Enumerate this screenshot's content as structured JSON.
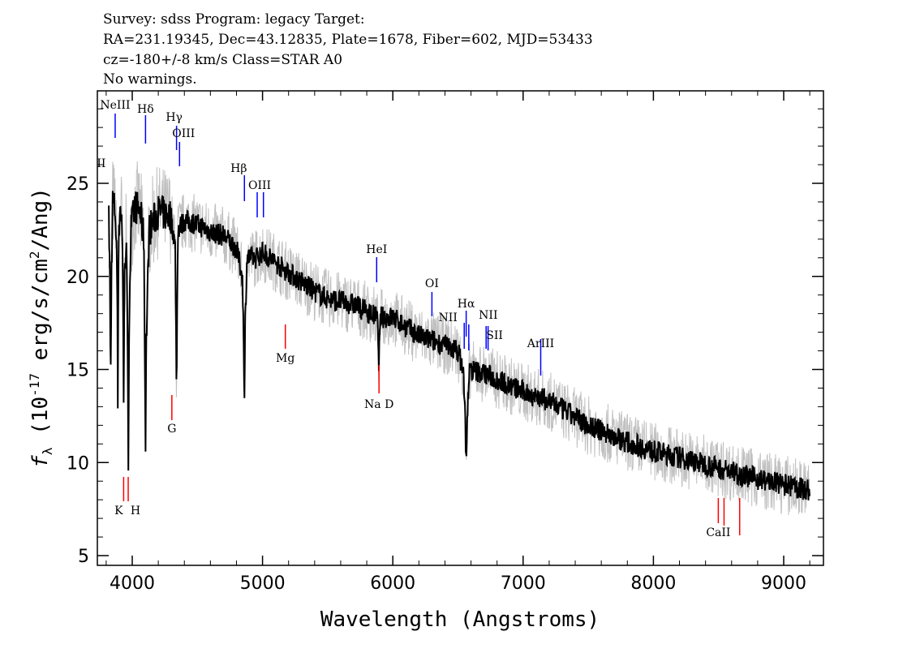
{
  "header": {
    "line1": "Survey: sdss Program: legacy Target:",
    "line2": "RA=231.19345, Dec=43.12835, Plate=1678, Fiber=602, MJD=53433",
    "line3": "cz=-180+/-8 km/s Class=STAR A0",
    "line4": "No warnings."
  },
  "chart_data": {
    "type": "line",
    "title": "",
    "xlabel": "Wavelength (Angstroms)",
    "ylabel": "f_λ (10^-17 erg/s/cm^2/Ang)",
    "xlim": [
      3732,
      9305
    ],
    "ylim": [
      4.5,
      30
    ],
    "x_ticks": [
      4000,
      5000,
      6000,
      7000,
      8000,
      9000
    ],
    "y_ticks": [
      5,
      10,
      15,
      20,
      25
    ],
    "grid": false,
    "colors": {
      "spectrum": "#000000",
      "error": "#c0c0c0",
      "emission": "#0000ff",
      "absorption": "#ff0000"
    },
    "series": [
      {
        "x": [
          3820,
          3828,
          3834,
          3840,
          3850,
          3870,
          3885,
          3889,
          3893,
          3905,
          3920,
          3930,
          3934,
          3940,
          3955,
          3964,
          3970,
          3976,
          3990,
          4020,
          4060,
          4090,
          4096,
          4102,
          4108,
          4130,
          4200,
          4300,
          4330,
          4336,
          4340,
          4344,
          4350,
          4400,
          4500,
          4600,
          4700,
          4800,
          4845,
          4855,
          4861,
          4867,
          4880,
          4950,
          5000,
          5200,
          5400,
          5500,
          5700,
          5880,
          5893,
          5906,
          6000,
          6200,
          6400,
          6500,
          6540,
          6555,
          6563,
          6571,
          6590,
          6700,
          7000,
          7200,
          7500,
          7800,
          8000,
          8300,
          8500,
          8700,
          9000,
          9200
        ],
        "y": [
          23.0,
          20.5,
          14.0,
          20.0,
          24.0,
          23.5,
          20.0,
          13.5,
          20.5,
          24.0,
          23.0,
          19.0,
          13.5,
          19.5,
          22.5,
          16.0,
          10.0,
          17.5,
          22.5,
          23.8,
          23.5,
          22.0,
          16.0,
          11.5,
          16.5,
          22.5,
          23.5,
          23.2,
          21.5,
          17.0,
          13.5,
          17.5,
          22.5,
          23.0,
          22.8,
          22.4,
          22.2,
          21.5,
          20.0,
          17.0,
          13.2,
          17.5,
          21.0,
          21.0,
          21.3,
          20.2,
          19.2,
          18.8,
          18.5,
          17.8,
          15.5,
          17.8,
          17.8,
          16.8,
          16.3,
          16.0,
          15.0,
          12.5,
          9.8,
          12.5,
          15.0,
          14.8,
          13.8,
          13.3,
          12.0,
          11.1,
          10.6,
          10.1,
          9.7,
          9.3,
          8.8,
          8.5
        ]
      }
    ],
    "lines": [
      {
        "name": "OII",
        "wavelength": 3727,
        "kind": "emission"
      },
      {
        "name": "NeIII",
        "wavelength": 3869,
        "kind": "emission"
      },
      {
        "name": "Hδ",
        "wavelength": 4102,
        "kind": "emission"
      },
      {
        "name": "Hγ",
        "wavelength": 4340,
        "kind": "emission"
      },
      {
        "name": "OIII",
        "wavelength": 4363,
        "kind": "emission"
      },
      {
        "name": "Hβ",
        "wavelength": 4861,
        "kind": "emission"
      },
      {
        "name": "OIII",
        "wavelength": 4959,
        "kind": "emission"
      },
      {
        "name": "",
        "wavelength": 5007,
        "kind": "emission"
      },
      {
        "name": "HeI",
        "wavelength": 5876,
        "kind": "emission"
      },
      {
        "name": "OI",
        "wavelength": 6300,
        "kind": "emission"
      },
      {
        "name": "NII",
        "wavelength": 6548,
        "kind": "emission"
      },
      {
        "name": "Hα",
        "wavelength": 6563,
        "kind": "emission"
      },
      {
        "name": "NII",
        "wavelength": 6583,
        "kind": "emission"
      },
      {
        "name": "",
        "wavelength": 6716,
        "kind": "emission"
      },
      {
        "name": "SII",
        "wavelength": 6731,
        "kind": "emission"
      },
      {
        "name": "ArIII",
        "wavelength": 7135,
        "kind": "emission"
      },
      {
        "name": "K",
        "wavelength": 3934,
        "kind": "absorption"
      },
      {
        "name": "H",
        "wavelength": 3969,
        "kind": "absorption"
      },
      {
        "name": "G",
        "wavelength": 4304,
        "kind": "absorption"
      },
      {
        "name": "Mg",
        "wavelength": 5175,
        "kind": "absorption"
      },
      {
        "name": "Na D",
        "wavelength": 5894,
        "kind": "absorption"
      },
      {
        "name": "CaII",
        "wavelength": 8498,
        "kind": "absorption"
      },
      {
        "name": "",
        "wavelength": 8542,
        "kind": "absorption"
      },
      {
        "name": "",
        "wavelength": 8662,
        "kind": "absorption"
      }
    ]
  }
}
